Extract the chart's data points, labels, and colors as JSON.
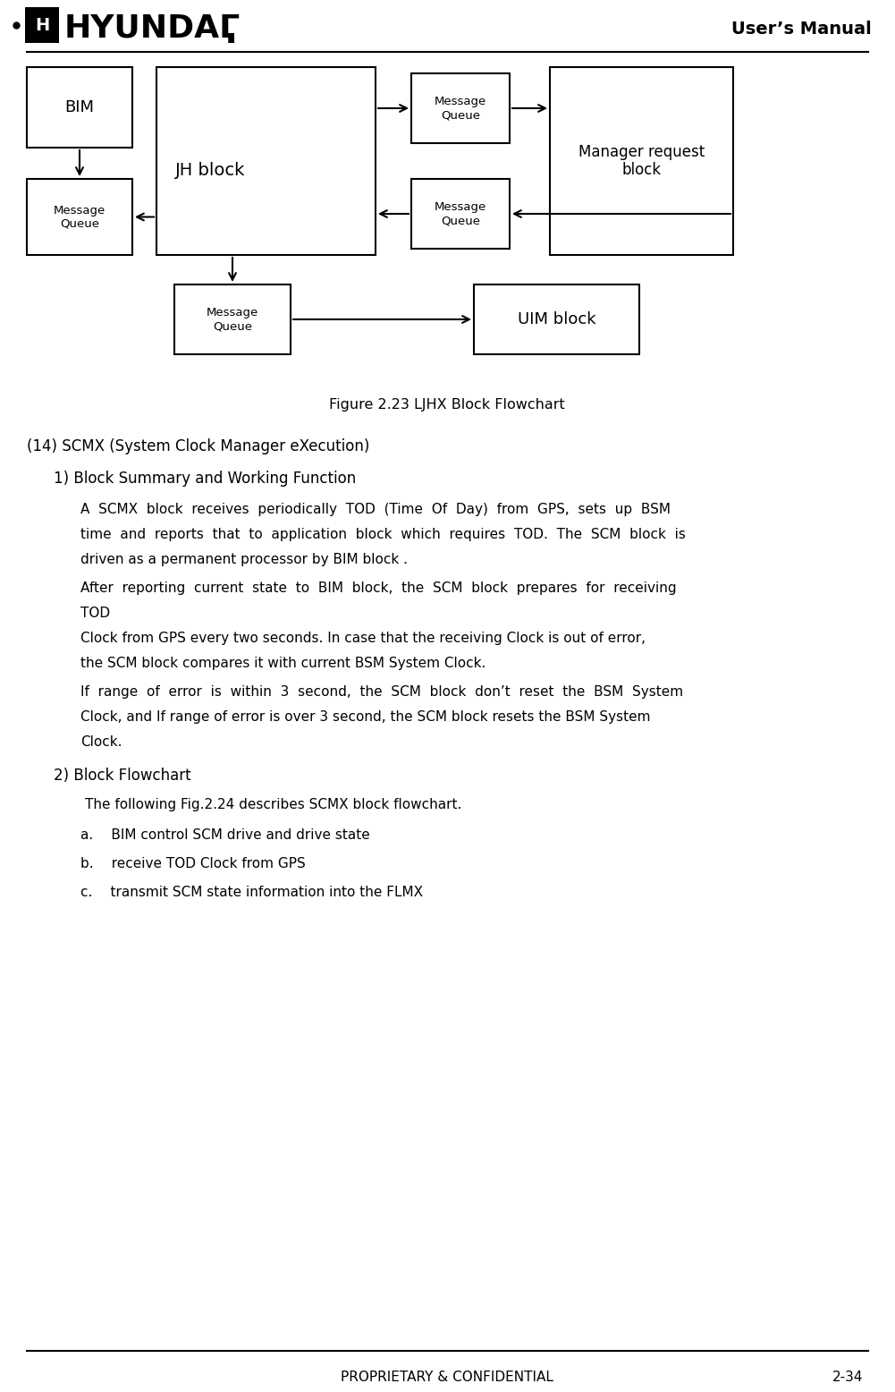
{
  "page_width": 10.01,
  "page_height": 15.56,
  "bg_color": "#ffffff",
  "title_text": "User’s Manual",
  "footer_left": "PROPRIETARY & CONFIDENTIAL",
  "footer_right": "2-34",
  "figure_caption": "Figure 2.23 LJHX Block Flowchart",
  "section_title": "(14) SCMX (System Clock Manager eXecution)",
  "subsection1": "1) Block Summary and Working Function",
  "subsection2": "2) Block Flowchart",
  "para4": "The following Fig.2.24 describes SCMX block flowchart.",
  "bullet_a": "a.  BIM control SCM drive and drive state",
  "bullet_b": "b.  receive TOD Clock from GPS",
  "bullet_c": "c.  transmit SCM state information into the FLMX",
  "text_lines": [
    "A SCMX block receives periodically TOD (Time Of Day) from GPS, sets up BSM",
    "time  and  reports  that  to  application  block  which  requires  TOD.  The SCM  block  is",
    "driven as a permanent processor by BIM block .",
    "After  reporting  current  state  to  BIM  block,  the  SCM  block  prepares  for  receiving",
    "TOD",
    "Clock from GPS every two seconds. In case that the receiving Clock is out of error,",
    "the SCM block compares it with current BSM System Clock.",
    "If  range  of  error  is  within  3  second,  the  SCM  block  don’t  reset  the  BSM  System",
    "Clock, and If range of error is over 3 second, the SCM block resets the BSM System",
    "Clock."
  ]
}
